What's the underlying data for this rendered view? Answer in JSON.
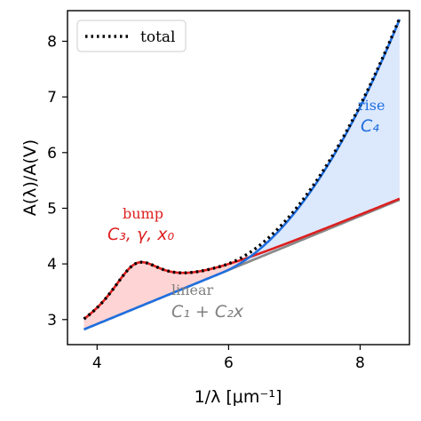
{
  "chart_data": {
    "type": "line",
    "xlabel": "1/λ [μm⁻¹]",
    "ylabel": "A(λ)/A(V)",
    "xlim": [
      3.55,
      8.75
    ],
    "ylim": [
      2.55,
      8.55
    ],
    "xticks": [
      4,
      6,
      8
    ],
    "yticks": [
      3,
      4,
      5,
      6,
      7,
      8
    ],
    "legend": {
      "placement": "top-left",
      "entries": [
        {
          "label": "total",
          "style": "dotted",
          "color": "#000000"
        }
      ]
    },
    "components": {
      "x_start": 3.8,
      "x_end": 8.6,
      "linear": {
        "c1": 0.98,
        "c2": 0.485
      },
      "bump": {
        "c3": 0.77,
        "gamma": 0.98,
        "x0": 4.6
      },
      "rise": {
        "c4": 0.445,
        "x_start": 5.9,
        "power": 2
      }
    },
    "series": [
      {
        "name": "linear",
        "color": "#888888",
        "fill": "none"
      },
      {
        "name": "linear + bump",
        "color": "#dd1f1f",
        "fill": "#ffd4d4"
      },
      {
        "name": "rise",
        "color": "#1f6fe0",
        "fill": "#d6e4fb"
      },
      {
        "name": "total",
        "color": "#000000",
        "style": "dotted"
      }
    ],
    "annotations": [
      {
        "word": "bump",
        "symbols": "C₃, γ, x₀",
        "color": "#dd1f1f"
      },
      {
        "word": "rise",
        "symbols": "C₄",
        "color": "#1f6fe0"
      },
      {
        "word": "linear",
        "symbols": "C₁ + C₂x",
        "color": "#808080"
      }
    ]
  }
}
